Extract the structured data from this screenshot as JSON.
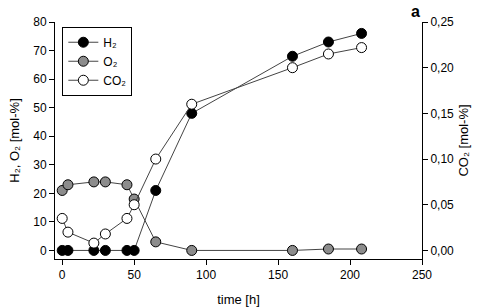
{
  "chart_data": {
    "type": "line",
    "annotations": [
      {
        "text": "a"
      }
    ],
    "x_label": "time [h]",
    "y_label": "H₂, O₂ [mol-%]",
    "y2_label": "CO₂ [mol-%]",
    "x": [
      0,
      4,
      22,
      30,
      45,
      50,
      65,
      90,
      160,
      185,
      208
    ],
    "series": [
      {
        "name": "H₂",
        "color": "#000000",
        "marker": "circle",
        "values": [
          0,
          0,
          0,
          0,
          0,
          0,
          21,
          48,
          68,
          73,
          76
        ]
      },
      {
        "name": "O₂",
        "color": "#8c8c8c",
        "marker": "circle",
        "values": [
          21,
          23,
          24,
          24,
          23,
          18,
          3,
          0,
          0,
          0.5,
          0.5
        ]
      },
      {
        "name": "CO₂",
        "color": "#ffffff",
        "marker": "circle",
        "axis": "y2",
        "values": [
          0.035,
          0.02,
          0.008,
          0.018,
          0.035,
          0.05,
          0.1,
          0.16,
          0.2,
          0.215,
          0.222
        ]
      }
    ],
    "xlim": [
      -5,
      250
    ],
    "xticks": [
      0,
      50,
      100,
      150,
      200,
      250
    ],
    "ylim": [
      -3,
      80
    ],
    "yticks": [
      0,
      10,
      20,
      30,
      40,
      50,
      60,
      70,
      80
    ],
    "y2lim": [
      -0.0094,
      0.25
    ],
    "y2ticks": [
      {
        "value": 0,
        "label": "0,00"
      },
      {
        "value": 0.05,
        "label": "0,05"
      },
      {
        "value": 0.1,
        "label": "0,10"
      },
      {
        "value": 0.15,
        "label": "0,15"
      },
      {
        "value": 0.2,
        "label": "0,20"
      },
      {
        "value": 0.25,
        "label": "0,25"
      }
    ],
    "legend": "top left",
    "grid": false
  }
}
